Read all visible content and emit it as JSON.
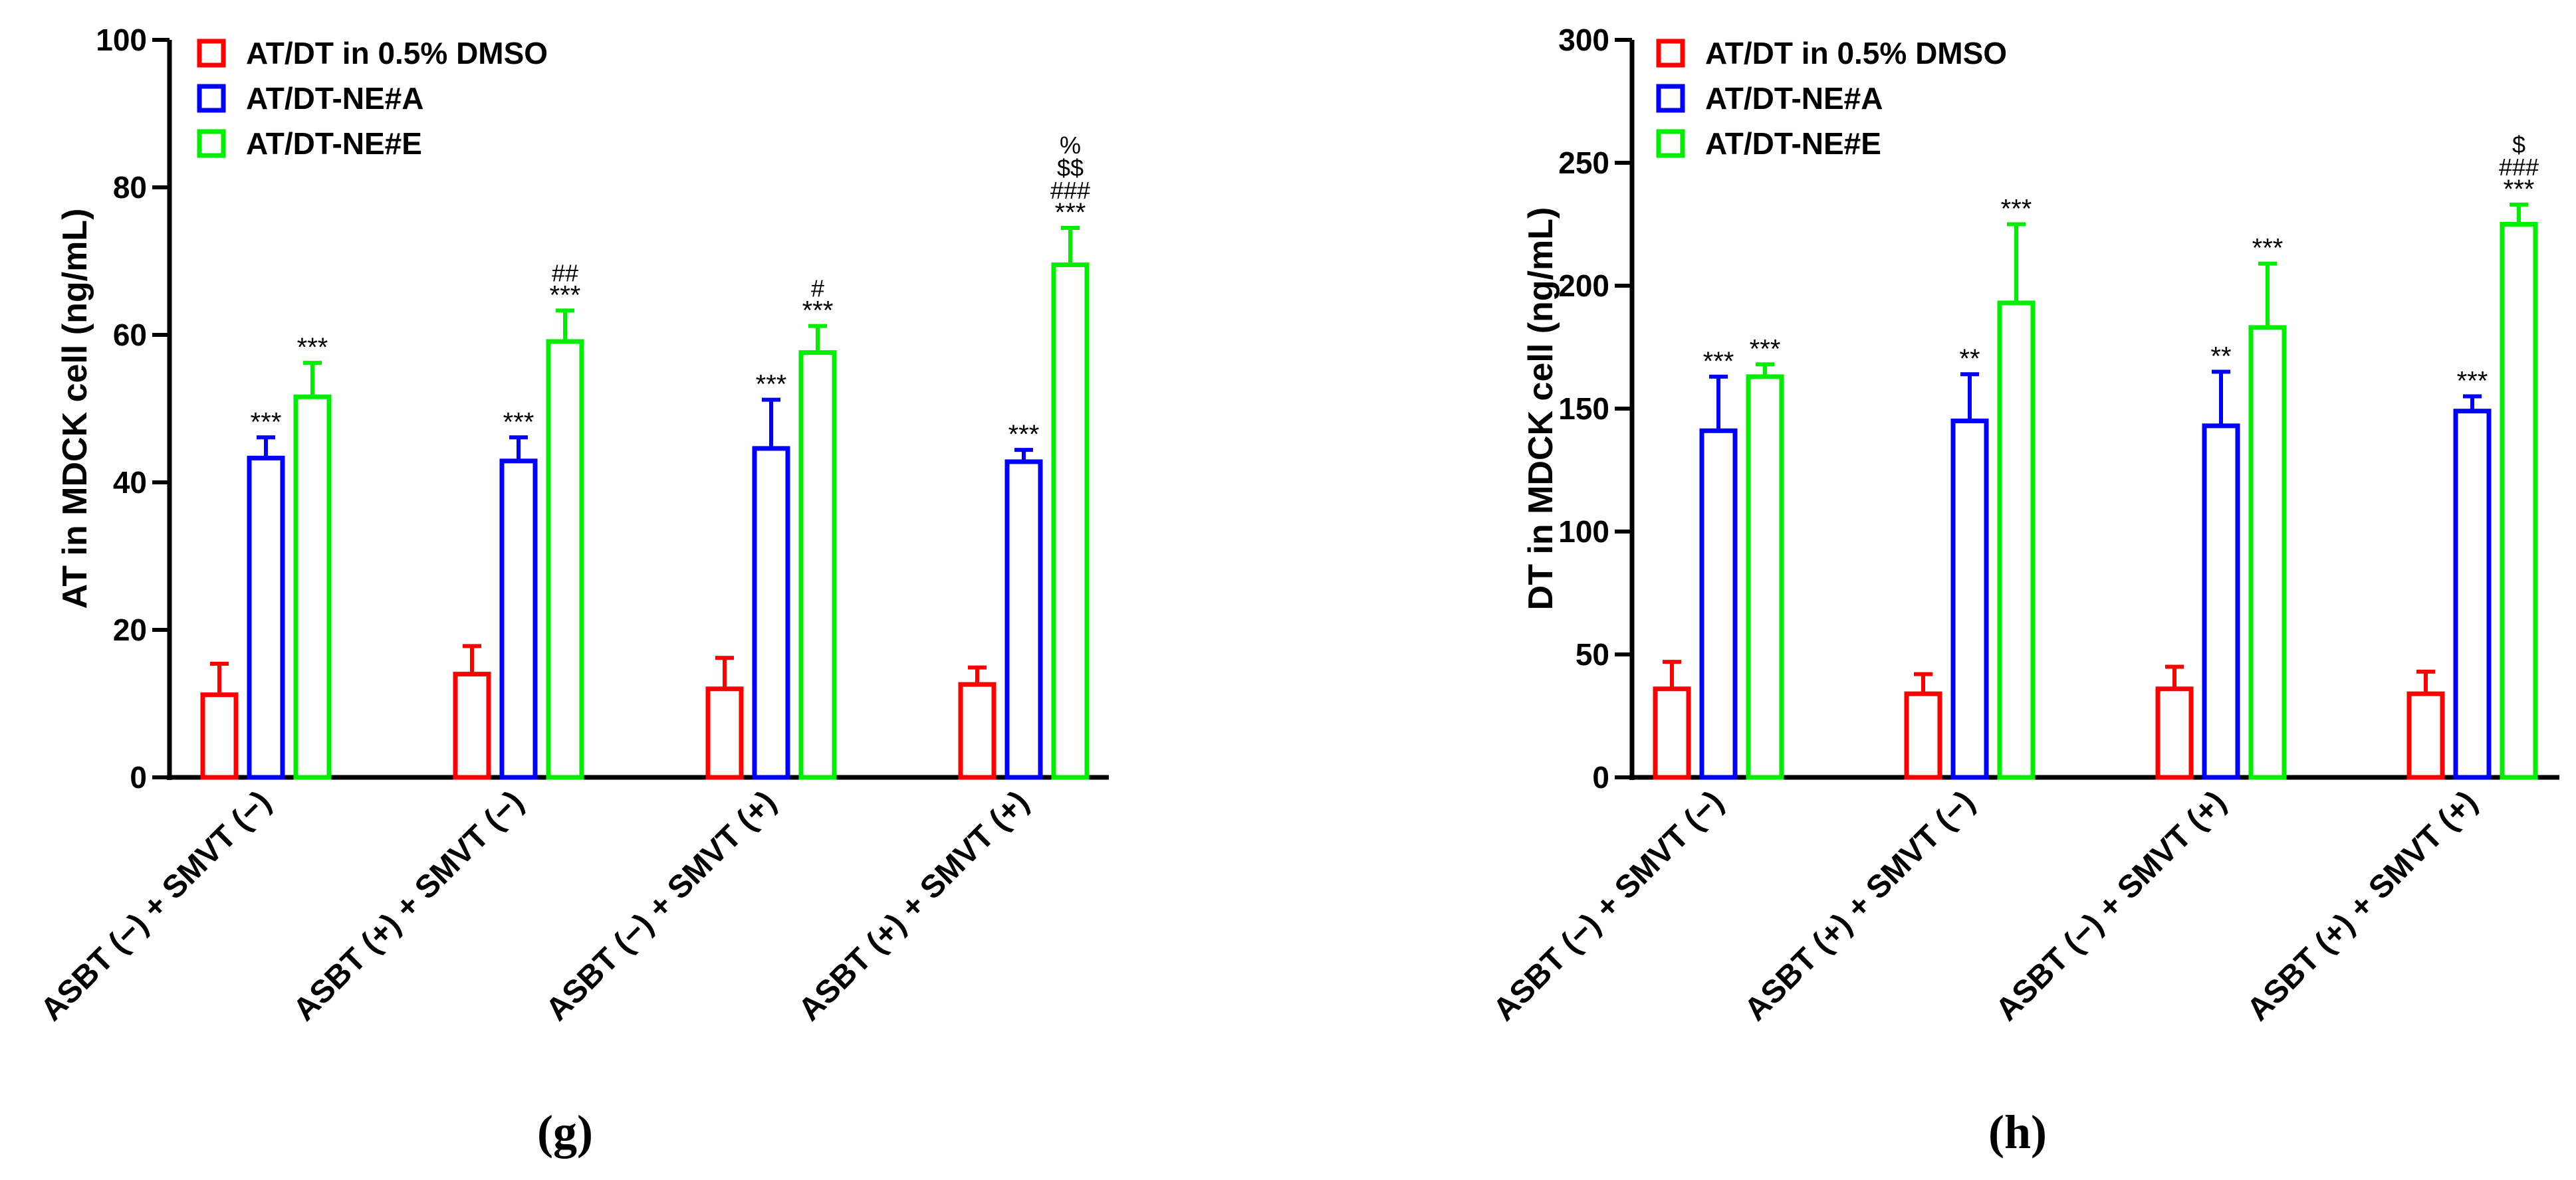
{
  "chart_data": [
    {
      "type": "bar",
      "panel_label": "(g)",
      "title": "",
      "xlabel": "",
      "ylabel": "AT in MDCK cell (ng/mL)",
      "ylim": [
        0,
        100
      ],
      "yticks": [
        "0",
        "20",
        "40",
        "60",
        "80",
        "100"
      ],
      "legend_position": "top-left",
      "categories": [
        "ASBT (−) + SMVT (−)",
        "ASBT (+) + SMVT (−)",
        "ASBT (−) + SMVT (+)",
        "ASBT (+) + SMVT (+)"
      ],
      "series": [
        {
          "name": "AT/DT in 0.5% DMSO",
          "color": "#ff0000",
          "values": [
            11.2,
            14.0,
            12.0,
            12.6
          ],
          "errors": [
            4.2,
            3.8,
            4.2,
            2.3
          ],
          "sig": [
            [],
            [],
            [],
            []
          ]
        },
        {
          "name": "AT/DT-NE#A",
          "color": "#0000ff",
          "values": [
            43.3,
            42.9,
            44.6,
            42.8
          ],
          "errors": [
            2.8,
            3.2,
            6.6,
            1.6
          ],
          "sig": [
            [
              "***"
            ],
            [
              "***"
            ],
            [
              "***"
            ],
            [
              "***"
            ]
          ]
        },
        {
          "name": "AT/DT-NE#E",
          "color": "#00ee00",
          "values": [
            51.6,
            59.1,
            57.6,
            69.5
          ],
          "errors": [
            4.6,
            4.2,
            3.6,
            5.0
          ],
          "sig": [
            [
              "***"
            ],
            [
              "##",
              "***"
            ],
            [
              "#",
              "***"
            ],
            [
              "%",
              "$$",
              "###",
              "***"
            ]
          ]
        }
      ]
    },
    {
      "type": "bar",
      "panel_label": "(h)",
      "title": "",
      "xlabel": "",
      "ylabel": "DT in MDCK cell (ng/mL)",
      "ylim": [
        0,
        300
      ],
      "yticks": [
        "0",
        "50",
        "100",
        "150",
        "200",
        "250",
        "300"
      ],
      "legend_position": "top-left",
      "categories": [
        "ASBT (−) + SMVT (−)",
        "ASBT (+) + SMVT (−)",
        "ASBT (−) + SMVT (+)",
        "ASBT (+) + SMVT (+)"
      ],
      "series": [
        {
          "name": "AT/DT in 0.5% DMSO",
          "color": "#ff0000",
          "values": [
            36,
            34,
            36,
            34
          ],
          "errors": [
            11,
            8,
            9,
            9
          ],
          "sig": [
            [],
            [],
            [],
            []
          ]
        },
        {
          "name": "AT/DT-NE#A",
          "color": "#0000ff",
          "values": [
            141,
            145,
            143,
            149
          ],
          "errors": [
            22,
            19,
            22,
            6
          ],
          "sig": [
            [
              "***"
            ],
            [
              "**"
            ],
            [
              "**"
            ],
            [
              "***"
            ]
          ]
        },
        {
          "name": "AT/DT-NE#E",
          "color": "#00ee00",
          "values": [
            163,
            193,
            183,
            225
          ],
          "errors": [
            5,
            32,
            26,
            8
          ],
          "sig": [
            [
              "***"
            ],
            [
              "***"
            ],
            [
              "***"
            ],
            [
              "$",
              "###",
              "***"
            ]
          ]
        }
      ]
    }
  ]
}
